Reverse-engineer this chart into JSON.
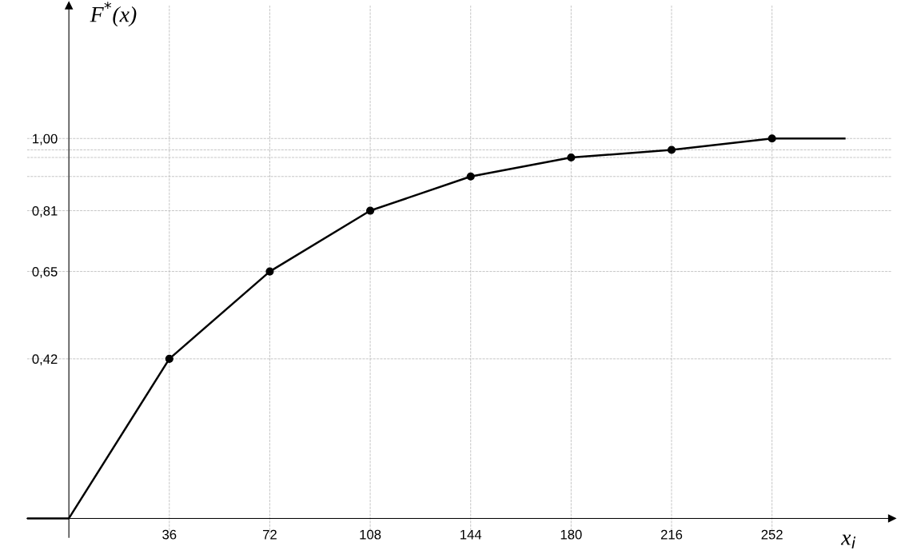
{
  "chart_data": {
    "type": "line",
    "xlabel": "x$_{i}$",
    "ylabel": "F$^{*}$(x)",
    "series": [
      {
        "color": "#000000",
        "marker": "none",
        "x": [
          -15,
          0,
          36,
          72,
          108,
          144,
          180,
          216,
          252,
          278
        ],
        "values": [
          0,
          0,
          0.42,
          0.65,
          0.81,
          0.9,
          0.95,
          0.97,
          1.0,
          1.0
        ]
      },
      {
        "type": "scatter",
        "color": "#000000",
        "marker": "circle",
        "x": [
          36,
          72,
          108,
          144,
          180,
          216,
          252
        ],
        "values": [
          0.42,
          0.65,
          0.81,
          0.9,
          0.95,
          0.97,
          1.0
        ]
      }
    ],
    "xlim": [
      -15,
      295
    ],
    "ylim": [
      -0.05,
      1.35
    ],
    "xticks": [
      36,
      72,
      108,
      144,
      180,
      216,
      252
    ],
    "yticks": [
      {
        "value": 0.42,
        "label": "0,42"
      },
      {
        "value": 0.65,
        "label": "0,65"
      },
      {
        "value": 0.81,
        "label": "0,81"
      },
      {
        "value": 0.9,
        "label": null
      },
      {
        "value": 0.95,
        "label": null
      },
      {
        "value": 0.97,
        "label": null
      },
      {
        "value": 1.0,
        "label": "1,00"
      }
    ],
    "grid": true
  }
}
